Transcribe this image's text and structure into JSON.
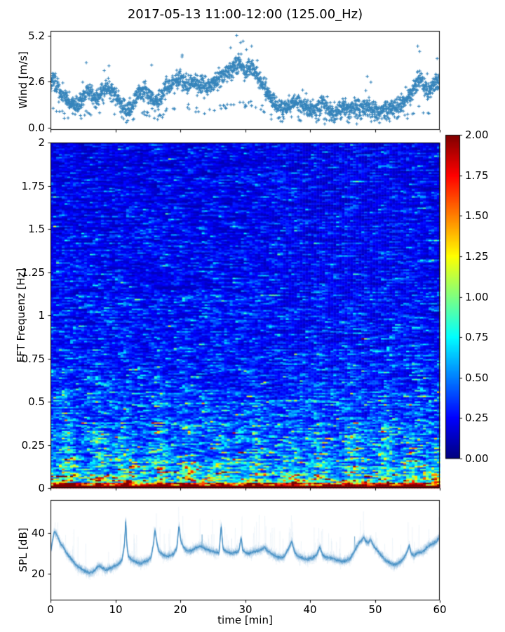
{
  "title": "2017-05-13 11:00-12:00 (125.00_Hz)",
  "xlabel": "time [min]",
  "colors": {
    "series_blue": "#1f77b4",
    "axis": "#000000",
    "background": "#ffffff"
  },
  "colorbar": {
    "colormap": "jet",
    "min": 0,
    "max": 2,
    "tick_values": [
      0,
      0.25,
      0.5,
      0.75,
      1.0,
      1.25,
      1.5,
      1.75,
      2.0
    ],
    "tick_labels": [
      "0.00",
      "0.25",
      "0.50",
      "0.75",
      "1.00",
      "1.25",
      "1.50",
      "1.75",
      "2.00"
    ]
  },
  "chart_data": [
    {
      "id": "wind",
      "type": "scatter",
      "ylabel": "Wind [m/s]",
      "marker": "+",
      "color": "#1f77b4",
      "xlim": [
        0,
        60
      ],
      "ylim": [
        -0.12,
        5.46
      ],
      "yticks": {
        "values": [
          0.0,
          2.6,
          5.2
        ],
        "labels": [
          "0.0",
          "2.6",
          "5.2"
        ]
      },
      "xticks": {
        "values": [
          0,
          10,
          20,
          30,
          40,
          50,
          60
        ],
        "labels": []
      },
      "n_points": 2300,
      "noise_sd": 0.5,
      "seed": 42,
      "outliers": [
        [
          28.7,
          5.2
        ],
        [
          29.3,
          4.8
        ],
        [
          31.0,
          4.6
        ],
        [
          30.2,
          4.4
        ],
        [
          56.6,
          4.6
        ],
        [
          56.9,
          4.3
        ],
        [
          20.3,
          4.1
        ],
        [
          59.6,
          3.9
        ]
      ],
      "trend": [
        [
          0,
          2.5
        ],
        [
          0.5,
          2.7
        ],
        [
          1,
          2.3
        ],
        [
          1.5,
          2.0
        ],
        [
          2,
          1.8
        ],
        [
          2.5,
          1.6
        ],
        [
          3,
          1.4
        ],
        [
          3.5,
          1.3
        ],
        [
          4,
          1.2
        ],
        [
          4.5,
          1.4
        ],
        [
          5,
          1.7
        ],
        [
          5.5,
          2.0
        ],
        [
          6,
          2.1
        ],
        [
          6.5,
          1.8
        ],
        [
          7,
          1.6
        ],
        [
          7.5,
          1.8
        ],
        [
          8,
          2.0
        ],
        [
          8.5,
          2.2
        ],
        [
          9,
          2.3
        ],
        [
          9.5,
          2.0
        ],
        [
          10,
          1.8
        ],
        [
          10.5,
          1.5
        ],
        [
          11,
          1.2
        ],
        [
          11.5,
          1.0
        ],
        [
          12,
          1.0
        ],
        [
          12.5,
          1.2
        ],
        [
          13,
          1.5
        ],
        [
          13.5,
          1.9
        ],
        [
          14,
          2.2
        ],
        [
          14.5,
          2.1
        ],
        [
          15,
          1.9
        ],
        [
          15.5,
          1.6
        ],
        [
          16,
          1.4
        ],
        [
          16.5,
          1.5
        ],
        [
          17,
          1.7
        ],
        [
          17.5,
          2.0
        ],
        [
          18,
          2.2
        ],
        [
          18.5,
          2.4
        ],
        [
          19,
          2.6
        ],
        [
          19.5,
          2.7
        ],
        [
          20,
          2.8
        ],
        [
          20.5,
          2.6
        ],
        [
          21,
          2.4
        ],
        [
          21.5,
          2.5
        ],
        [
          22,
          2.6
        ],
        [
          22.5,
          2.5
        ],
        [
          23,
          2.4
        ],
        [
          23.5,
          2.3
        ],
        [
          24,
          2.2
        ],
        [
          24.5,
          2.4
        ],
        [
          25,
          2.6
        ],
        [
          25.5,
          2.7
        ],
        [
          26,
          2.8
        ],
        [
          26.5,
          2.9
        ],
        [
          27,
          3.0
        ],
        [
          27.5,
          3.2
        ],
        [
          28,
          3.4
        ],
        [
          28.5,
          3.5
        ],
        [
          29,
          3.6
        ],
        [
          29.5,
          3.4
        ],
        [
          30,
          3.2
        ],
        [
          30.5,
          3.3
        ],
        [
          31,
          3.4
        ],
        [
          31.5,
          3.2
        ],
        [
          32,
          2.8
        ],
        [
          32.5,
          2.5
        ],
        [
          33,
          2.2
        ],
        [
          33.5,
          1.9
        ],
        [
          34,
          1.6
        ],
        [
          34.5,
          1.4
        ],
        [
          35,
          1.2
        ],
        [
          35.5,
          1.1
        ],
        [
          36,
          1.0
        ],
        [
          36.5,
          1.1
        ],
        [
          37,
          1.3
        ],
        [
          37.5,
          1.5
        ],
        [
          38,
          1.4
        ],
        [
          38.5,
          1.3
        ],
        [
          39,
          1.2
        ],
        [
          39.5,
          1.1
        ],
        [
          40,
          1.0
        ],
        [
          40.5,
          1.0
        ],
        [
          41,
          1.1
        ],
        [
          41.5,
          1.2
        ],
        [
          42,
          1.3
        ],
        [
          42.5,
          1.1
        ],
        [
          43,
          1.0
        ],
        [
          43.5,
          0.9
        ],
        [
          44,
          0.9
        ],
        [
          44.5,
          1.0
        ],
        [
          45,
          1.1
        ],
        [
          45.5,
          1.2
        ],
        [
          46,
          1.2
        ],
        [
          46.5,
          1.1
        ],
        [
          47,
          1.0
        ],
        [
          47.5,
          1.0
        ],
        [
          48,
          1.1
        ],
        [
          48.5,
          1.2
        ],
        [
          49,
          1.3
        ],
        [
          49.5,
          1.1
        ],
        [
          50,
          1.0
        ],
        [
          50.5,
          0.9
        ],
        [
          51,
          0.9
        ],
        [
          51.5,
          1.0
        ],
        [
          52,
          1.0
        ],
        [
          52.5,
          1.1
        ],
        [
          53,
          1.1
        ],
        [
          53.5,
          1.2
        ],
        [
          54,
          1.3
        ],
        [
          54.5,
          1.5
        ],
        [
          55,
          1.7
        ],
        [
          55.5,
          1.9
        ],
        [
          56,
          2.2
        ],
        [
          56.5,
          2.6
        ],
        [
          57,
          2.8
        ],
        [
          57.5,
          2.4
        ],
        [
          58,
          2.1
        ],
        [
          58.5,
          2.2
        ],
        [
          59,
          2.4
        ],
        [
          59.5,
          2.5
        ],
        [
          60,
          2.6
        ]
      ]
    },
    {
      "id": "spectrogram",
      "type": "heatmap",
      "ylabel": "FFT Frequenz [Hz]",
      "colormap": "jet",
      "clim": [
        0,
        2
      ],
      "xlim": [
        0,
        60
      ],
      "ylim": [
        0,
        2
      ],
      "yticks": {
        "values": [
          0,
          0.25,
          0.5,
          0.75,
          1.0,
          1.25,
          1.5,
          1.75,
          2.0
        ],
        "labels": [
          "0",
          "0.25",
          "0.5",
          "0.75",
          "1",
          "1.25",
          "1.5",
          "1.75",
          "2"
        ]
      },
      "xticks": {
        "values": [
          0,
          10,
          20,
          30,
          40,
          50,
          60
        ],
        "labels": []
      },
      "n_time_bins": 139,
      "n_freq_bins": 246,
      "seed": 7,
      "freq_intensity_profile": [
        [
          0,
          2.6
        ],
        [
          0.004,
          2.2
        ],
        [
          0.01,
          1.5
        ],
        [
          0.02,
          1.05
        ],
        [
          0.04,
          0.8
        ],
        [
          0.07,
          0.62
        ],
        [
          0.12,
          0.52
        ],
        [
          0.2,
          0.44
        ],
        [
          0.3,
          0.38
        ],
        [
          0.45,
          0.32
        ],
        [
          0.6,
          0.28
        ],
        [
          0.8,
          0.25
        ],
        [
          1.2,
          0.22
        ],
        [
          1.6,
          0.2
        ],
        [
          2,
          0.19
        ]
      ],
      "time_events": [
        [
          2.5,
          1.5
        ],
        [
          7.5,
          1.45
        ],
        [
          11.5,
          1.35
        ],
        [
          17,
          1.6
        ],
        [
          21.5,
          1.4
        ],
        [
          26,
          1.35
        ],
        [
          31.5,
          1.45
        ],
        [
          37.5,
          1.5
        ],
        [
          41.5,
          1.3
        ],
        [
          47,
          1.55
        ],
        [
          51.5,
          1.4
        ],
        [
          56,
          1.45
        ]
      ]
    },
    {
      "id": "spl",
      "type": "line",
      "ylabel": "SPL [dB]",
      "color": "#1f77b4",
      "xlim": [
        0,
        60
      ],
      "ylim": [
        7,
        56.2
      ],
      "yticks": {
        "values": [
          20,
          40
        ],
        "labels": [
          "20",
          "40"
        ]
      },
      "xticks": {
        "values": [
          0,
          10,
          20,
          30,
          40,
          50,
          60
        ],
        "labels": [
          "0",
          "10",
          "20",
          "30",
          "40",
          "50",
          "60"
        ]
      },
      "fuzz_passes": 26,
      "fuzz_sd": 2.2,
      "seed": 11,
      "points": [
        [
          0,
          30
        ],
        [
          0.3,
          36
        ],
        [
          0.6,
          41
        ],
        [
          1,
          39
        ],
        [
          1.5,
          35
        ],
        [
          2,
          33
        ],
        [
          2.5,
          30
        ],
        [
          3,
          28
        ],
        [
          3.5,
          26
        ],
        [
          4,
          24
        ],
        [
          4.5,
          23
        ],
        [
          5,
          22
        ],
        [
          5.5,
          21
        ],
        [
          6,
          20.5
        ],
        [
          6.5,
          21
        ],
        [
          7,
          22.5
        ],
        [
          7.5,
          24
        ],
        [
          8,
          23
        ],
        [
          8.5,
          22
        ],
        [
          9,
          22.5
        ],
        [
          9.5,
          23
        ],
        [
          10,
          24
        ],
        [
          10.5,
          25
        ],
        [
          11,
          26.5
        ],
        [
          11.4,
          34
        ],
        [
          11.6,
          46
        ],
        [
          11.8,
          33
        ],
        [
          12,
          28.5
        ],
        [
          12.5,
          27
        ],
        [
          13,
          26
        ],
        [
          13.5,
          25.5
        ],
        [
          14,
          25
        ],
        [
          14.5,
          26
        ],
        [
          15,
          26.5
        ],
        [
          15.5,
          28
        ],
        [
          15.9,
          35
        ],
        [
          16.1,
          42
        ],
        [
          16.4,
          35
        ],
        [
          16.7,
          31
        ],
        [
          17,
          30
        ],
        [
          17.5,
          29
        ],
        [
          18,
          28.5
        ],
        [
          18.5,
          29
        ],
        [
          19,
          30
        ],
        [
          19.5,
          33
        ],
        [
          19.8,
          44
        ],
        [
          20.1,
          36
        ],
        [
          20.5,
          33
        ],
        [
          21,
          31.5
        ],
        [
          21.5,
          31
        ],
        [
          22,
          32
        ],
        [
          22.5,
          33
        ],
        [
          23,
          33.5
        ],
        [
          23.5,
          33
        ],
        [
          24,
          32
        ],
        [
          24.5,
          31.5
        ],
        [
          25,
          31
        ],
        [
          25.5,
          30.5
        ],
        [
          26,
          30.5
        ],
        [
          26.3,
          44
        ],
        [
          26.6,
          32
        ],
        [
          27,
          31
        ],
        [
          27.5,
          30.5
        ],
        [
          28,
          30
        ],
        [
          28.5,
          30.5
        ],
        [
          29,
          31
        ],
        [
          29.4,
          38
        ],
        [
          29.6,
          32
        ],
        [
          30,
          30.5
        ],
        [
          30.5,
          30
        ],
        [
          31,
          30.5
        ],
        [
          31.5,
          31
        ],
        [
          32,
          31.5
        ],
        [
          32.5,
          32
        ],
        [
          33,
          33
        ],
        [
          33.5,
          31
        ],
        [
          34,
          30
        ],
        [
          34.5,
          29
        ],
        [
          35,
          28
        ],
        [
          35.5,
          28
        ],
        [
          36,
          28.5
        ],
        [
          36.8,
          33
        ],
        [
          37.2,
          36
        ],
        [
          37.6,
          31
        ],
        [
          38,
          29
        ],
        [
          38.5,
          28
        ],
        [
          39,
          27.5
        ],
        [
          39.5,
          27
        ],
        [
          40,
          27.5
        ],
        [
          40.5,
          28
        ],
        [
          41,
          29
        ],
        [
          41.5,
          33
        ],
        [
          42,
          29
        ],
        [
          42.5,
          28
        ],
        [
          43,
          28
        ],
        [
          43.5,
          27.5
        ],
        [
          44,
          27
        ],
        [
          44.5,
          26.5
        ],
        [
          45,
          26
        ],
        [
          45.5,
          26.5
        ],
        [
          46,
          27
        ],
        [
          46.5,
          29
        ],
        [
          47,
          32
        ],
        [
          47.5,
          35
        ],
        [
          48,
          36.5
        ],
        [
          48.3,
          38
        ],
        [
          48.6,
          36
        ],
        [
          49,
          35
        ],
        [
          49.3,
          37
        ],
        [
          49.6,
          35
        ],
        [
          50,
          33
        ],
        [
          50.5,
          31
        ],
        [
          51,
          29
        ],
        [
          51.5,
          27
        ],
        [
          52,
          26
        ],
        [
          52.5,
          25
        ],
        [
          53,
          24.5
        ],
        [
          53.5,
          25
        ],
        [
          54,
          26
        ],
        [
          54.5,
          28
        ],
        [
          55,
          31
        ],
        [
          55.3,
          34
        ],
        [
          55.6,
          30
        ],
        [
          56,
          29
        ],
        [
          56.5,
          30
        ],
        [
          57,
          30.5
        ],
        [
          57.5,
          31
        ],
        [
          58,
          33
        ],
        [
          58.5,
          34
        ],
        [
          59,
          35
        ],
        [
          59.5,
          36
        ],
        [
          60,
          38
        ]
      ]
    }
  ]
}
